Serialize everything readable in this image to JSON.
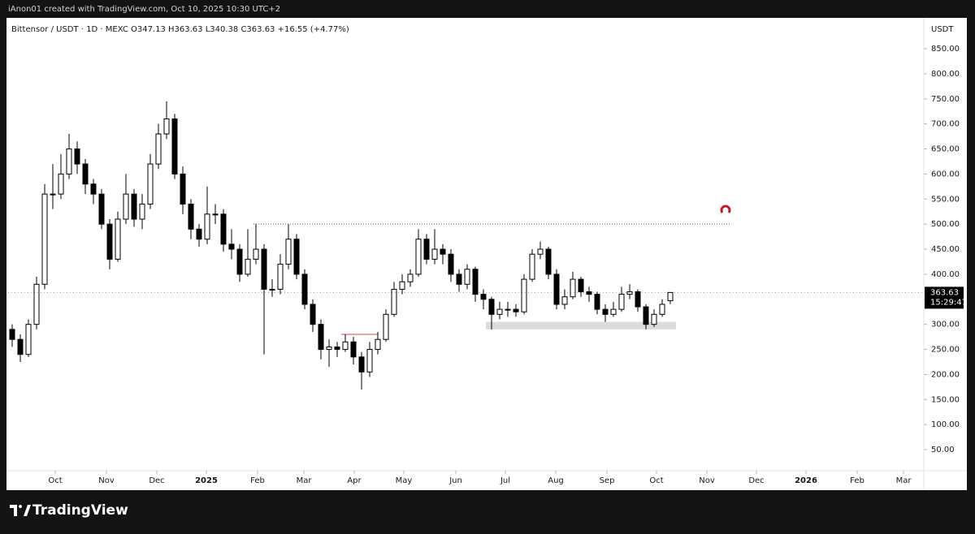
{
  "chart_data": {
    "type": "candlestick",
    "header": "iAnon01 created with TradingView.com, Oct 10, 2025 10:30 UTC+2",
    "legend": "Bittensor / USDT · 1D · MEXC  O347.13  H363.63  L340.38  C363.63  +16.55 (+4.77%)",
    "axis_unit": "USDT",
    "last_price": 363.63,
    "countdown": "15:29:47",
    "brand": "TradingView",
    "open": [
      290,
      270,
      240,
      300,
      380,
      560,
      560,
      600,
      650,
      620,
      580,
      560,
      500,
      430,
      510,
      560,
      510,
      540,
      620,
      680,
      710,
      600,
      540,
      490,
      470,
      520,
      520,
      460,
      450,
      400,
      430,
      450,
      370,
      370,
      420,
      470,
      400,
      340,
      300,
      250,
      255,
      250,
      265,
      235,
      205,
      250,
      270,
      320,
      370,
      385,
      400,
      470,
      430,
      450,
      440,
      400,
      380,
      410,
      360,
      350,
      320,
      330,
      330,
      325,
      390,
      440,
      450,
      400,
      340,
      355,
      390,
      365,
      360,
      330,
      320,
      330,
      360,
      365,
      335,
      300,
      320,
      347.13
    ],
    "high": [
      300,
      280,
      310,
      395,
      580,
      620,
      640,
      680,
      665,
      630,
      590,
      570,
      510,
      525,
      600,
      570,
      560,
      640,
      700,
      745,
      720,
      615,
      550,
      500,
      575,
      540,
      530,
      490,
      460,
      490,
      500,
      460,
      390,
      440,
      500,
      480,
      410,
      350,
      310,
      270,
      265,
      280,
      275,
      245,
      265,
      285,
      330,
      385,
      400,
      410,
      490,
      480,
      490,
      460,
      450,
      410,
      420,
      415,
      370,
      355,
      345,
      345,
      340,
      400,
      450,
      465,
      455,
      410,
      370,
      405,
      395,
      375,
      365,
      340,
      345,
      375,
      380,
      370,
      340,
      330,
      350,
      363.63
    ],
    "low": [
      255,
      225,
      235,
      290,
      370,
      530,
      550,
      590,
      600,
      560,
      540,
      490,
      410,
      425,
      500,
      495,
      490,
      530,
      610,
      670,
      590,
      520,
      470,
      455,
      460,
      500,
      445,
      430,
      385,
      395,
      420,
      240,
      355,
      360,
      410,
      390,
      330,
      285,
      230,
      215,
      235,
      245,
      220,
      170,
      195,
      240,
      265,
      315,
      360,
      375,
      395,
      420,
      420,
      420,
      385,
      365,
      370,
      345,
      330,
      290,
      310,
      315,
      315,
      320,
      385,
      430,
      390,
      330,
      330,
      350,
      355,
      345,
      320,
      305,
      315,
      325,
      350,
      325,
      290,
      295,
      315,
      340.38
    ],
    "close": [
      270,
      240,
      300,
      380,
      560,
      560,
      600,
      650,
      620,
      580,
      560,
      500,
      430,
      510,
      560,
      510,
      540,
      620,
      680,
      710,
      600,
      540,
      490,
      470,
      520,
      520,
      460,
      450,
      400,
      430,
      450,
      370,
      370,
      420,
      470,
      400,
      340,
      300,
      250,
      255,
      250,
      265,
      235,
      205,
      250,
      270,
      320,
      370,
      385,
      400,
      470,
      430,
      450,
      440,
      400,
      380,
      410,
      360,
      350,
      320,
      330,
      330,
      325,
      390,
      440,
      450,
      400,
      340,
      355,
      390,
      365,
      360,
      330,
      320,
      330,
      360,
      365,
      335,
      300,
      320,
      340,
      363.63
    ],
    "up_color": "#ffffff",
    "down_color": "#000000",
    "xlim": [
      -0.5,
      112.2
    ],
    "xticks": [
      {
        "value": 5.3,
        "label": "Oct"
      },
      {
        "value": 11.6,
        "label": "Nov"
      },
      {
        "value": 17.8,
        "label": "Dec"
      },
      {
        "value": 23.9,
        "label": "2025"
      },
      {
        "value": 30.2,
        "label": "Feb"
      },
      {
        "value": 35.9,
        "label": "Mar"
      },
      {
        "value": 42.1,
        "label": "Apr"
      },
      {
        "value": 48.2,
        "label": "May"
      },
      {
        "value": 54.6,
        "label": "Jun"
      },
      {
        "value": 60.7,
        "label": "Jul"
      },
      {
        "value": 66.9,
        "label": "Aug"
      },
      {
        "value": 73.2,
        "label": "Sep"
      },
      {
        "value": 79.3,
        "label": "Oct"
      },
      {
        "value": 85.5,
        "label": "Nov"
      },
      {
        "value": 91.6,
        "label": "Dec"
      },
      {
        "value": 97.7,
        "label": "2026"
      },
      {
        "value": 104,
        "label": "Feb"
      },
      {
        "value": 109.7,
        "label": "Mar"
      }
    ],
    "ylim": [
      8,
      911.6
    ],
    "yticks": [
      {
        "value": 50,
        "label": "50.00"
      },
      {
        "value": 100,
        "label": "100.00"
      },
      {
        "value": 150,
        "label": "150.00"
      },
      {
        "value": 200,
        "label": "200.00"
      },
      {
        "value": 250,
        "label": "250.00"
      },
      {
        "value": 300,
        "label": "300.00"
      },
      {
        "value": 350,
        "label": "350.00"
      },
      {
        "value": 400,
        "label": "400.00"
      },
      {
        "value": 450,
        "label": "450.00"
      },
      {
        "value": 500,
        "label": "500.00"
      },
      {
        "value": 550,
        "label": "550.00"
      },
      {
        "value": 600,
        "label": "600.00"
      },
      {
        "value": 650,
        "label": "650.00"
      },
      {
        "value": 700,
        "label": "700.00"
      },
      {
        "value": 750,
        "label": "750.00"
      },
      {
        "value": 800,
        "label": "800.00"
      },
      {
        "value": 850,
        "label": "850.00"
      }
    ],
    "levels": [
      {
        "value": 500,
        "x": [
          29.7,
          88.5
        ],
        "color": "#666666",
        "dash": "1,2"
      },
      {
        "value": 280,
        "x": [
          40.5,
          45
        ],
        "color": "#e0474c",
        "dash": "none"
      }
    ],
    "zone": {
      "range": [
        290,
        305
      ],
      "x": [
        58.3,
        81.7
      ],
      "color": "#dcdcdc"
    }
  }
}
